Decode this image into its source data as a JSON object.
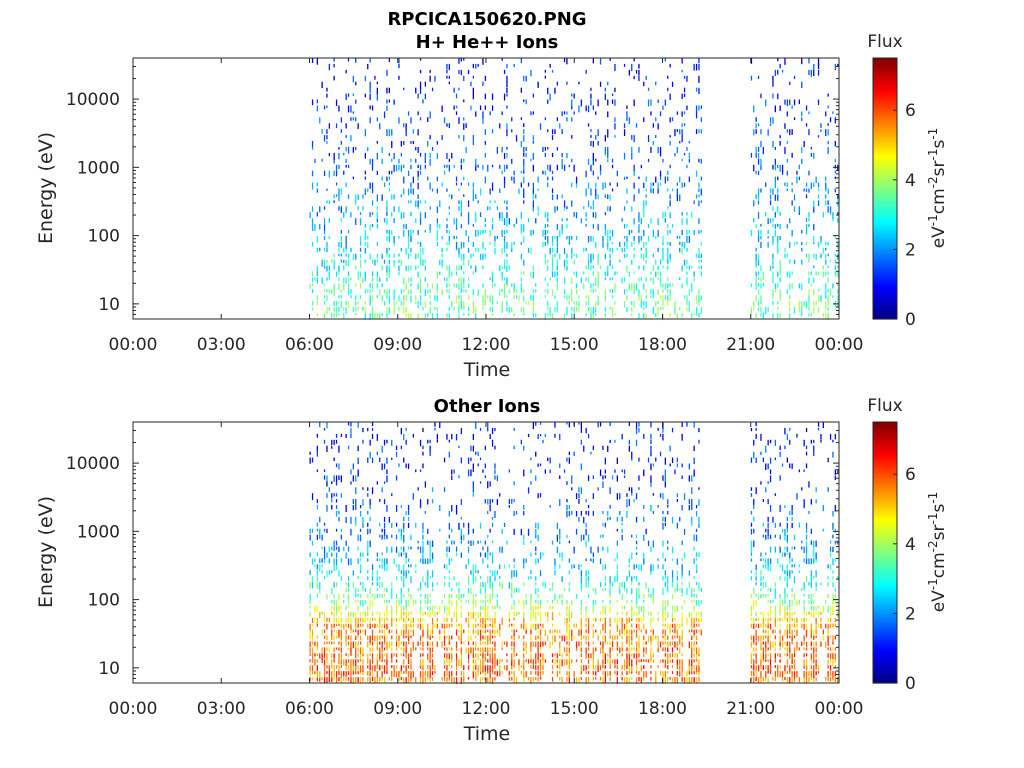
{
  "figure": {
    "title": "RPCICA150620.PNG"
  },
  "chart_data": [
    {
      "type": "heatmap",
      "title": "H+ He++ Ions",
      "xlabel": "Time",
      "ylabel": "Energy (eV)",
      "x_ticks": [
        "00:00",
        "03:00",
        "06:00",
        "09:00",
        "12:00",
        "15:00",
        "18:00",
        "21:00",
        "00:00"
      ],
      "y_ticks": [
        "10",
        "100",
        "1000",
        "10000"
      ],
      "y_scale": "log",
      "ylim": [
        6,
        40000
      ],
      "xlim_hours": [
        0,
        24
      ],
      "colorbar": {
        "title": "Flux",
        "label_base": "eV",
        "label_parts": [
          "-1",
          "cm",
          "-2",
          "sr",
          "-1",
          "s",
          "-1"
        ],
        "ticks": [
          "0",
          "2",
          "4",
          "6"
        ],
        "range": [
          0,
          7.5
        ],
        "colormap": "jet"
      },
      "data_segments": [
        {
          "start_hour": 6.0,
          "end_hour": 19.3
        },
        {
          "start_hour": 21.0,
          "end_hour": 24.0
        }
      ],
      "flux_profile_by_energy": [
        {
          "energy_eV": 10,
          "flux": 3.5
        },
        {
          "energy_eV": 30,
          "flux": 3.0
        },
        {
          "energy_eV": 100,
          "flux": 2.4
        },
        {
          "energy_eV": 1000,
          "flux": 1.6
        },
        {
          "energy_eV": 10000,
          "flux": 1.2
        },
        {
          "energy_eV": 30000,
          "flux": 1.0
        }
      ]
    },
    {
      "type": "heatmap",
      "title": "Other Ions",
      "xlabel": "Time",
      "ylabel": "Energy (eV)",
      "x_ticks": [
        "00:00",
        "03:00",
        "06:00",
        "09:00",
        "12:00",
        "15:00",
        "18:00",
        "21:00",
        "00:00"
      ],
      "y_ticks": [
        "10",
        "100",
        "1000",
        "10000"
      ],
      "y_scale": "log",
      "ylim": [
        6,
        40000
      ],
      "xlim_hours": [
        0,
        24
      ],
      "colorbar": {
        "title": "Flux",
        "label_base": "eV",
        "label_parts": [
          "-1",
          "cm",
          "-2",
          "sr",
          "-1",
          "s",
          "-1"
        ],
        "ticks": [
          "0",
          "2",
          "4",
          "6"
        ],
        "range": [
          0,
          7.5
        ],
        "colormap": "jet"
      },
      "data_segments": [
        {
          "start_hour": 6.0,
          "end_hour": 19.3
        },
        {
          "start_hour": 21.0,
          "end_hour": 24.0
        }
      ],
      "flux_profile_by_energy": [
        {
          "energy_eV": 10,
          "flux": 5.8
        },
        {
          "energy_eV": 40,
          "flux": 5.5
        },
        {
          "energy_eV": 100,
          "flux": 3.5
        },
        {
          "energy_eV": 300,
          "flux": 2.5
        },
        {
          "energy_eV": 1000,
          "flux": 1.8
        },
        {
          "energy_eV": 10000,
          "flux": 1.2
        }
      ]
    }
  ]
}
